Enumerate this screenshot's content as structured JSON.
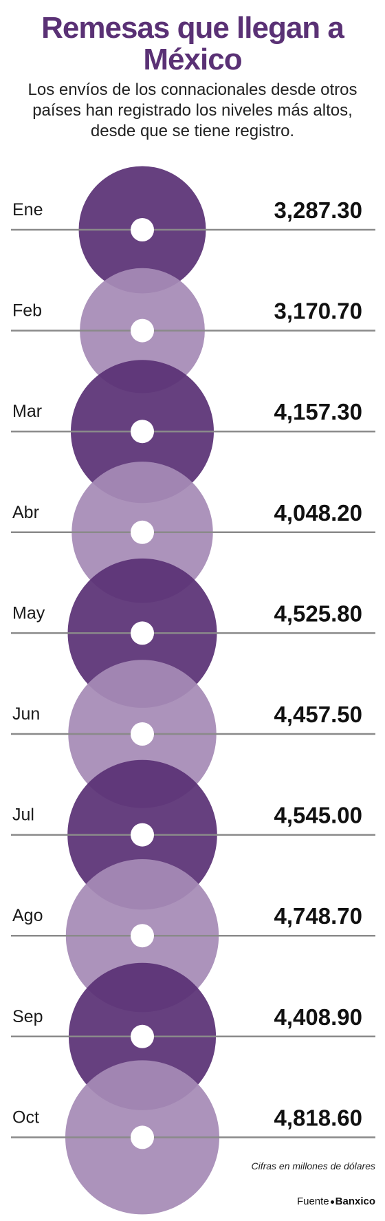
{
  "title": "Remesas que llegan a México",
  "subtitle": "Los envíos de los connacionales desde otros países han registrado los niveles más altos, desde que se tiene registro.",
  "footnote": "Cifras en millones de dólares",
  "source": {
    "label": "Fuente",
    "name": "Banxico"
  },
  "colors": {
    "dark": "#5a3175",
    "light": "#a68bb6",
    "line": "#8a8a8a"
  },
  "chart_data": {
    "type": "bubble",
    "categories": [
      "Ene",
      "Feb",
      "Mar",
      "Abr",
      "May",
      "Jun",
      "Jul",
      "Ago",
      "Sep",
      "Oct"
    ],
    "values": [
      3287.3,
      3170.7,
      4157.3,
      4048.2,
      4525.8,
      4457.5,
      4545.0,
      4748.7,
      4408.9,
      4818.6
    ],
    "value_labels": [
      "3,287.30",
      "3,170.70",
      "4,157.30",
      "4,048.20",
      "4,525.80",
      "4,457.50",
      "4,545.00",
      "4,748.70",
      "4,408.90",
      "4,818.60"
    ],
    "fills": [
      "dark",
      "light",
      "dark",
      "light",
      "dark",
      "light",
      "dark",
      "light",
      "dark",
      "light"
    ]
  }
}
